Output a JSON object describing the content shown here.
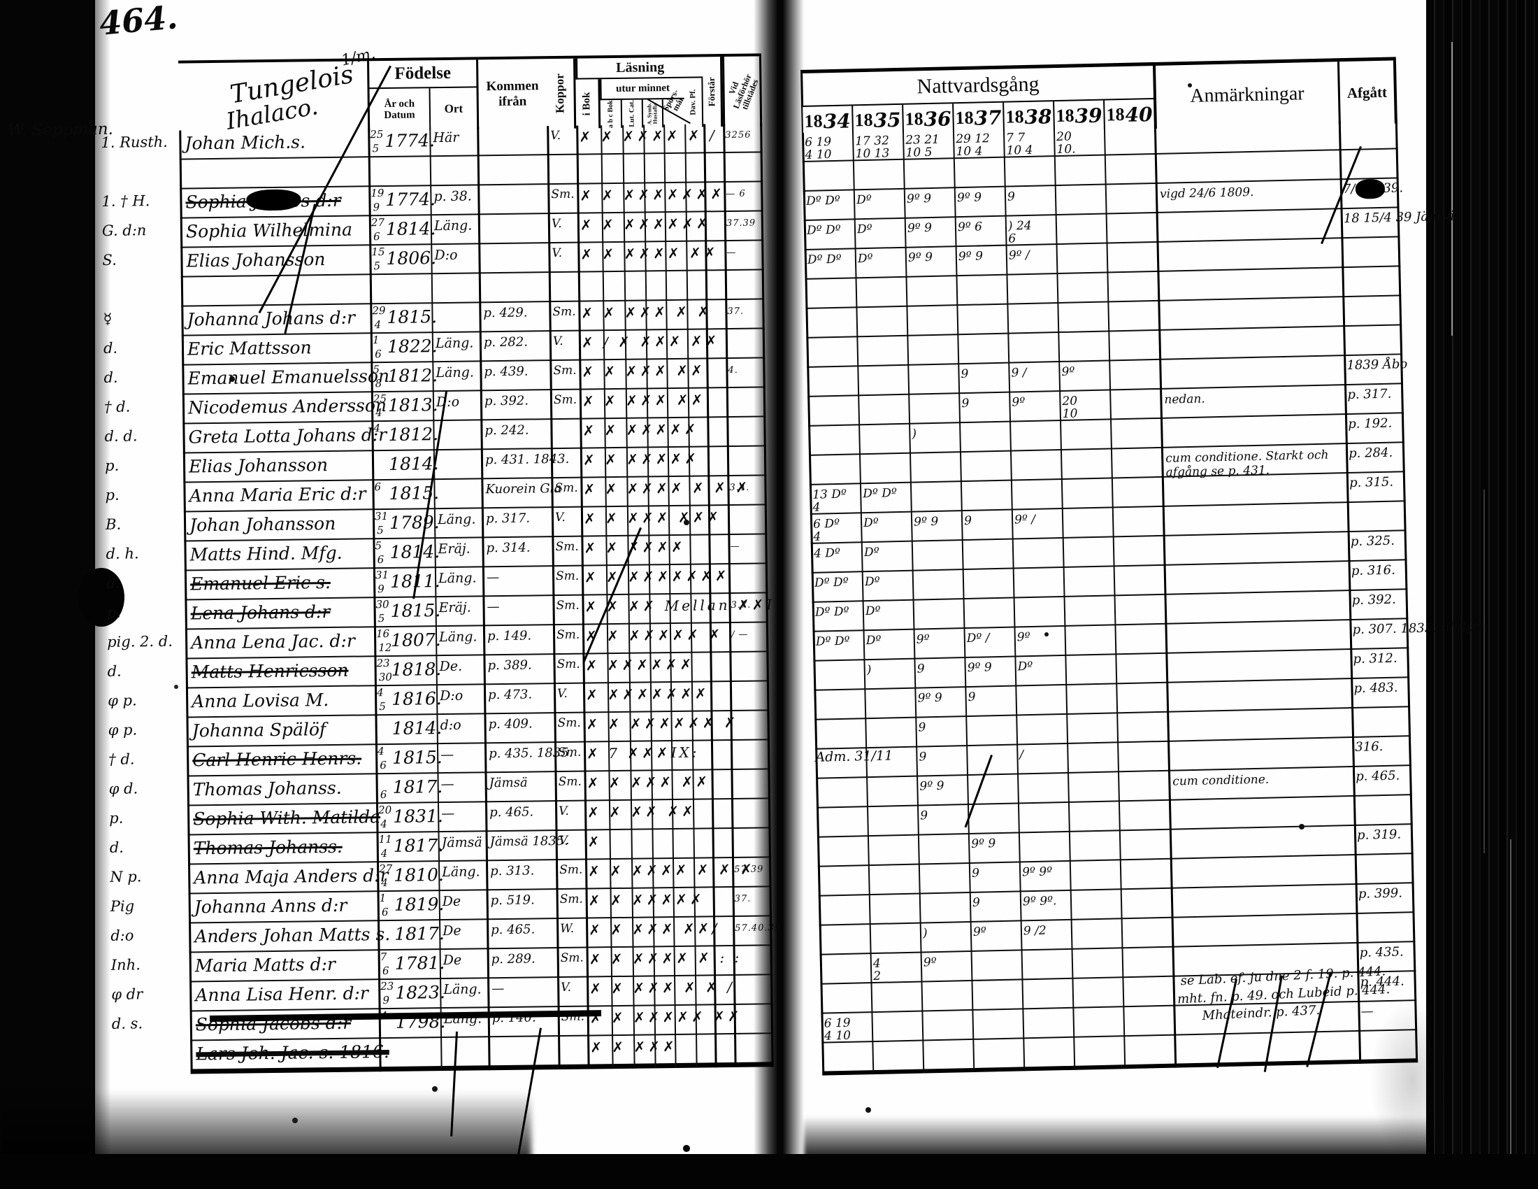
{
  "page": {
    "number": "464.",
    "estate_fraction": "1/m.",
    "estate_title_line1": "Tungelois",
    "estate_title_line2": "Ihalaco.",
    "group_note": "W. Seppman.",
    "adm_note": "Adm. 31/11"
  },
  "left_header": {
    "fodelse": "Födelse",
    "ar_och_datum": "År och Datum",
    "ort": "Ort",
    "kommen_ifran": "Kommen ifrån",
    "koppor": "Koppor",
    "lasning": "Läsning",
    "i_bok": "i Bok",
    "utur_minnet": "utur minnet",
    "abc_bok": "a b c Bok",
    "lut_cat": "Lut. Cat.",
    "symb": "A. Symb. Hustafla",
    "sporsmal": "Spörs- mål",
    "dav_pf": "Dav. Pf.",
    "forstar": "Förstår",
    "tillstades": "Vid Läsförhör tillstädes"
  },
  "right_header": {
    "nattvardsgang": "Nattvardsgång",
    "years": [
      "1834",
      "1835",
      "1836",
      "1837",
      "1838",
      "1839",
      "1840"
    ],
    "anmarkningar": "Anmärkningar",
    "afgatt": "Afgått"
  },
  "bottom_notes": {
    "line1": "se Lab. ef. ju dne 2 f. 19. p. 444.",
    "line2": "mht. fn. p. 49. och Lubeid p. 444.",
    "line3": "Mhateindr. p. 437."
  },
  "rows": [
    {
      "lb": "1. Rusth.",
      "nm": "Johan Mich.s.",
      "dd": "25",
      "mm": "5",
      "yr": "1774.",
      "ort": "Här",
      "fr": "",
      "kp": "V.",
      "rd": "✗ ✗ ✗✗✗✗ ✗ ∕",
      "ti": "3256",
      "na": [
        "6 19|4 10",
        "17 32|10 13",
        "23 21|10 5",
        "29 12|10 4",
        "7 7|10 4",
        "20|10.",
        ""
      ],
      "an": "",
      "af": ""
    },
    {
      "lb": "",
      "nm": "",
      "na": [
        "",
        "",
        "",
        "",
        "",
        "",
        ""
      ]
    },
    {
      "lb": "1. † H.",
      "nm": "Sophia Jacobs d:r",
      "st": 1,
      "blot": 1,
      "afblot": 1,
      "dd": "19",
      "mm": "9",
      "yr": "1774.",
      "ort": "p. 38.",
      "kp": "Sm.",
      "rd": "✗ ✗ ✗✗✗✗✗✗✗",
      "ti": "— 6",
      "na": [
        "Dº Dº",
        "Dº",
        "9º 9",
        "9º 9",
        "9",
        "",
        ""
      ],
      "an": "vigd 24/6 1809.",
      "af": "7∕6  1839."
    },
    {
      "lb": "G. d:n",
      "nm": "Sophia Wilhelmina",
      "dd": "27",
      "mm": "6",
      "yr": "1814.",
      "ort": "Läng.",
      "kp": "V.",
      "rd": "✗ ✗ ✗✗✗✗✗✗",
      "ti": "37.39",
      "na": [
        "Dº Dº",
        "Dº",
        "9º 9",
        "9º 6",
        ") 24|6",
        "",
        ""
      ],
      "an": "",
      "af": "18 15∕4 39 Jämsä"
    },
    {
      "lb": "S.",
      "nm": "Elias Johansson",
      "dd": "15",
      "mm": "5",
      "yr": "1806.",
      "ort": "D:o",
      "kp": "V.",
      "rd": "✗ ✗ ✗✗✗✗ ✗✗",
      "ti": "—",
      "na": [
        "Dº Dº",
        "Dº",
        "9º 9",
        "9º 9",
        "9º ∕",
        "",
        ""
      ],
      "af": ""
    },
    {
      "lb": "",
      "nm": "",
      "na": [
        "",
        "",
        "",
        "",
        "",
        "",
        ""
      ]
    },
    {
      "lb": "☿",
      "nm": "Johanna Johans d:r",
      "dd": "29",
      "mm": "4",
      "yr": "1815.",
      "fr": "p. 429.",
      "kp": "Sm.",
      "rd": "✗ ✗ ✗✗✗ ✗ ✗",
      "ti": "37.",
      "na": [
        "",
        "",
        "",
        "",
        "",
        "",
        ""
      ],
      "af": ""
    },
    {
      "lb": "d.",
      "nm": "Eric Mattsson",
      "dd": "1",
      "mm": "6",
      "yr": "1822.",
      "ort": "Läng.",
      "fr": "p. 282.",
      "kp": "V.",
      "rd": "✗ ∕ ✗ ✗✗✗ ✗✗",
      "na": [
        "",
        "",
        "",
        "",
        "",
        "",
        ""
      ],
      "af": ""
    },
    {
      "lb": "d.",
      "nm": "Emanuel Emanuelsson",
      "dd": "5",
      "mm": "8",
      "yr": "1812.",
      "ort": "Läng.",
      "fr": "p. 439.",
      "kp": "Sm.",
      "rd": "✗ ✗ ✗✗✗ ✗✗",
      "ti": "4.",
      "na": [
        "",
        "",
        "",
        "9",
        "9 ∕",
        "9º",
        ""
      ],
      "af": "1839 Åbo"
    },
    {
      "lb": "† d.",
      "nm": "Nicodemus Andersson",
      "dd": "25",
      "mm": "4",
      "yr": "1813.",
      "ort": "D:o",
      "fr": "p. 392.",
      "kp": "Sm.",
      "rd": "✗ ✗ ✗✗✗ ✗✗",
      "na": [
        "",
        "",
        "",
        "9",
        "9º",
        "20|10",
        ""
      ],
      "an": "nedan.",
      "af": "p. 317."
    },
    {
      "lb": "d. d.",
      "nm": "Greta Lotta Johans d:r",
      "dd": "4",
      "yr": "1812.",
      "fr": "p. 242.",
      "rd": "✗ ✗ ✗✗✗✗✗",
      "na": [
        "",
        "",
        ")",
        "",
        "",
        "",
        ""
      ],
      "af": "p. 192."
    },
    {
      "lb": "p.",
      "nm": "Elias Johansson",
      "yr": "1814.",
      "fr": "p. 431. 1843.",
      "rd": "✗ ✗ ✗✗✗✗✗",
      "na": [
        "",
        "",
        "",
        "",
        "",
        "",
        ""
      ],
      "an": "cum conditione. Starkt och afgång se p. 431.",
      "af": "p. 284."
    },
    {
      "lb": "p.",
      "nm": "Anna Maria Eric d:r",
      "dd": "6",
      "yr": "1815.",
      "fr": "Kuorein Gla",
      "kp": "Sm.",
      "rd": "✗ ✗ ✗✗✗✗ ✗ ✗ ✗",
      "ti": "3.4.",
      "na": [
        "13 Dº|4",
        "Dº Dº",
        "",
        "",
        "",
        "",
        ""
      ],
      "af": "p. 315."
    },
    {
      "lb": "B.",
      "nm": "Johan Johansson",
      "dd": "31",
      "mm": "5",
      "yr": "1789.",
      "ort": "Läng.",
      "fr": "p. 317.",
      "kp": "V.",
      "rd": "✗ ✗ ✗✗✗ ✗✗✗",
      "na": [
        "6 Dº|4",
        "Dº",
        "9º 9",
        "9",
        "9º ∕",
        "",
        ""
      ],
      "af": ""
    },
    {
      "lb": "d. h.",
      "nm": "Matts Hind. Mfg.",
      "dd": "5",
      "mm": "6",
      "yr": "1814.",
      "ort": "Eräj.",
      "fr": "p. 314.",
      "kp": "Sm.",
      "rd": "✗ ✗ ✗✗✗✗",
      "ti": "—",
      "na": [
        "4 Dº",
        "Dº",
        "",
        "",
        "",
        "",
        ""
      ],
      "af": "p. 325."
    },
    {
      "lb": "d.",
      "nm": "Emanuel Eric s.",
      "st": 1,
      "dd": "31",
      "mm": "9",
      "yr": "1811.",
      "ort": "Läng.",
      "fr": "—",
      "kp": "Sm.",
      "rd": "✗ ✗ ✗✗✗✗✗✗✗",
      "na": [
        "Dº Dº",
        "Dº",
        "",
        "",
        "",
        "",
        ""
      ],
      "af": "p. 316."
    },
    {
      "lb": "p.",
      "nm": "Lena Johans d:r",
      "st": 1,
      "dd": "30",
      "mm": "5",
      "yr": "1815.",
      "ort": "Eräj.",
      "fr": "—",
      "kp": "Sm.",
      "rd": "✗ ✗ ✗✗ Mellan ✗✗I",
      "ti": "3.7.",
      "na": [
        "Dº Dº",
        "Dº",
        "",
        "",
        "",
        "",
        ""
      ],
      "af": "p. 392."
    },
    {
      "lb": "pig. 2. d.",
      "nm": "Anna Lena Jac. d:r",
      "dd": "16",
      "mm": "12",
      "yr": "1807.",
      "ort": "Läng.",
      "fr": "p. 149.",
      "kp": "Sm.",
      "rd": "✗ ✗ ✗✗✗✗✗ ✗",
      "ti": "∕ —",
      "na": [
        "Dº Dº",
        "Dº",
        "9º",
        "Dº ∕",
        "9º",
        "",
        ""
      ],
      "af": "p. 307. 1835. tillflytt."
    },
    {
      "lb": "d.",
      "nm": "Matts Henricsson",
      "st": 1,
      "dd": "23",
      "mm": "30",
      "yr": "1818.",
      "ort": "De.",
      "fr": "p. 389.",
      "kp": "Sm.",
      "rd": "✗ ✗✗✗✗✗✗",
      "na": [
        "",
        ")",
        "9",
        "9º 9",
        "Dº",
        "",
        ""
      ],
      "af": "p. 312."
    },
    {
      "lb": "φ p.",
      "nm": "Anna Lovisa M.",
      "dd": "4",
      "mm": "5",
      "yr": "1816.",
      "ort": "D:o",
      "fr": "p. 473.",
      "kp": "V.",
      "rd": "✗ ✗✗✗✗✗✗✗",
      "na": [
        "",
        "",
        "9º 9",
        "9",
        "",
        "",
        ""
      ],
      "af": "p. 483."
    },
    {
      "lb": "φ p.",
      "nm": "Johanna Spälöf",
      "yr": "1814.",
      "ort": "d:o",
      "fr": "p. 409.",
      "kp": "Sm.",
      "rd": "✗ ✗ ✗✗✗✗✗✗ ✗",
      "na": [
        "",
        "",
        "9",
        "",
        "",
        "",
        ""
      ],
      "af": ""
    },
    {
      "lb": "† d.",
      "nm": "Carl Henric Henrs.",
      "st": 1,
      "dd": "4",
      "mm": "6",
      "yr": "1815.",
      "ort": "—",
      "fr": "p. 435. 1835.",
      "kp": "Sm.",
      "rd": "✗ 7 ✗✗✗IX:",
      "na": [
        "",
        "",
        "9",
        "",
        "∕",
        "",
        ""
      ],
      "af": "316."
    },
    {
      "lb": "φ d.",
      "nm": "Thomas Johanss.",
      "mm": "6",
      "yr": "1817.",
      "ort": "—",
      "fr": "Jämsä",
      "kp": "Sm.",
      "rd": "✗ ✗ ✗✗✗ ✗✗",
      "na": [
        "",
        "",
        "9º 9",
        "",
        "",
        "",
        ""
      ],
      "an": "cum conditione.",
      "af": "p. 465."
    },
    {
      "lb": "p.",
      "nm": "Sophia With. Matilda",
      "st": 1,
      "dd": "20",
      "mm": "4",
      "yr": "1831.",
      "ort": "—",
      "fr": "p. 465.",
      "kp": "V.",
      "rd": "✗ ✗ ✗✗ ✗✗",
      "na": [
        "",
        "",
        "9",
        "",
        "",
        "",
        ""
      ],
      "af": ""
    },
    {
      "lb": "d.",
      "nm": "Thomas Johanss.",
      "st": 1,
      "dd": "11",
      "mm": "4",
      "yr": "1817.",
      "ort": "Jämsä",
      "fr": "Jämsä 1835.",
      "kp": "V.",
      "rd": "✗",
      "na": [
        "",
        "",
        "",
        "9º 9",
        "",
        "",
        ""
      ],
      "af": "p. 319."
    },
    {
      "lb": "N p.",
      "nm": "Anna Maja Anders d:r",
      "dd": "27",
      "mm": "4",
      "yr": "1810.",
      "ort": "Läng.",
      "fr": "p. 313.",
      "kp": "Sm.",
      "rd": "✗ ✗ ✗✗✗✗ ✗ ✗ ✗",
      "ti": "57.39",
      "na": [
        "",
        "",
        "",
        "9",
        "9º 9º",
        "",
        ""
      ],
      "af": ""
    },
    {
      "lb": "Pig",
      "nm": "Johanna Anns d:r",
      "dd": "1",
      "mm": "6",
      "yr": "1819.",
      "ort": "De",
      "fr": "p. 519.",
      "kp": "Sm.",
      "rd": "✗ ✗ ✗✗✗✗✗",
      "ti": "37.",
      "na": [
        "",
        "",
        "",
        "9",
        "9º 9º.",
        "",
        ""
      ],
      "af": "p. 399."
    },
    {
      "lb": "d:o",
      "nm": "Anders Johan Matts s.",
      "yr": "1817.",
      "ort": "De",
      "fr": "p. 465.",
      "kp": "W.",
      "rd": "✗ ✗ ✗✗✗ ✗✗∕",
      "ti": "57.40.39",
      "na": [
        "",
        "",
        ")",
        "9º",
        "9 ∕2",
        "",
        ""
      ],
      "af": ""
    },
    {
      "lb": "Inh.",
      "nm": "Maria Matts d:r",
      "dd": "7",
      "mm": "6",
      "yr": "1781.",
      "ort": "De",
      "fr": "p. 289.",
      "kp": "Sm.",
      "rd": "✗ ✗ ✗✗✗✗ ✗ : :",
      "na": [
        "",
        "4|2",
        "9º",
        "",
        "",
        "",
        ""
      ],
      "af": "p. 435."
    },
    {
      "lb": "φ dr",
      "nm": "Anna Lisa Henr. d:r",
      "dd": "23",
      "mm": "9",
      "yr": "1823.",
      "ort": "Läng.",
      "fr": "—",
      "kp": "V.",
      "rd": "✗ ✗ ✗✗✗ ✗ ✗ ∕",
      "na": [
        "",
        "",
        "",
        "",
        "",
        "",
        ""
      ],
      "af": "p. 444."
    },
    {
      "lb": "d. s.",
      "nm": "Sophia Jacobs d:r",
      "st": 1,
      "dd": "4",
      "yr": "1798.",
      "ort": "Läng.",
      "fr": "p. 140.",
      "kp": "Sm.",
      "rd": "✗ ✗ ✗✗✗✗✗ ✗✗",
      "na": [
        "6 19|4 10",
        "",
        "",
        "",
        "",
        "",
        ""
      ],
      "af": "—"
    },
    {
      "lb": "",
      "nm": "Lars Joh. Jac. s. 1816.",
      "st": 1,
      "heavy": 1,
      "rd": "✗ ✗ ✗✗✗",
      "na": [
        "",
        "",
        "",
        "",
        "",
        "",
        ""
      ],
      "af": ""
    }
  ]
}
